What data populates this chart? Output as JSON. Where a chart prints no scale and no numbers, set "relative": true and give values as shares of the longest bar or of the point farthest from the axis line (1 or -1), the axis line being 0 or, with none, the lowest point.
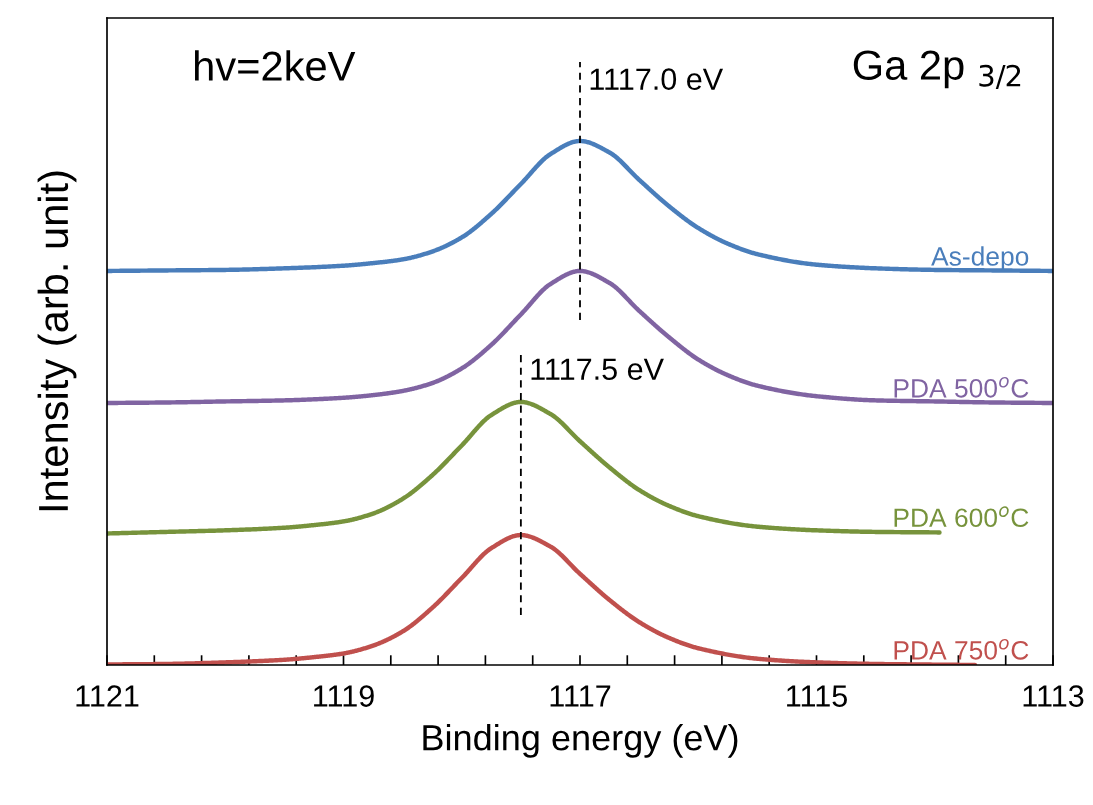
{
  "chart_data": {
    "type": "line",
    "relative": true,
    "xlabel": "Binding energy (eV)",
    "ylabel": "Intensity (arb. unit)",
    "annotations": [
      "hv=2keV",
      "Ga 2p $_{3/2}$"
    ],
    "xlim": [
      1121,
      1113
    ],
    "xticks": [
      1121,
      {
        "value": 1120.6,
        "label": null
      },
      {
        "value": 1120.2,
        "label": null
      },
      {
        "value": 1119.8,
        "label": null
      },
      {
        "value": 1119.4,
        "label": null
      },
      1119,
      {
        "value": 1118.6,
        "label": null
      },
      {
        "value": 1118.2,
        "label": null
      },
      {
        "value": 1117.8,
        "label": null
      },
      {
        "value": 1117.4,
        "label": null
      },
      1117,
      {
        "value": 1116.6,
        "label": null
      },
      {
        "value": 1116.2,
        "label": null
      },
      {
        "value": 1115.8,
        "label": null
      },
      {
        "value": 1115.4,
        "label": null
      },
      1115,
      {
        "value": 1114.6,
        "label": null
      },
      {
        "value": 1114.2,
        "label": null
      },
      {
        "value": 1113.8,
        "label": null
      },
      {
        "value": 1113.4,
        "label": null
      },
      1113
    ],
    "tick_labels": "x",
    "grid": false,
    "legend": false,
    "marker": "none",
    "line_style": "solid",
    "ref_lines": [
      {
        "axis": "x",
        "value": 1117.0,
        "label": "1117.0 eV",
        "color": "#000000",
        "line_style": "dashed"
      },
      {
        "axis": "x",
        "value": 1117.5,
        "label": "1117.5 eV",
        "color": "#000000",
        "line_style": "dashed"
      }
    ],
    "series": [
      {
        "name": "As-depo",
        "color": "#4a7ebb",
        "x": [
          1121,
          1120.5,
          1120,
          1119.5,
          1119,
          1118.75,
          1118.5,
          1118.25,
          1118,
          1117.75,
          1117.5,
          1117.25,
          1117,
          1116.75,
          1116.5,
          1116.25,
          1116,
          1115.75,
          1115.5,
          1115,
          1114.5,
          1114,
          1113.5,
          1113
        ],
        "values": [
          0.752,
          0.753,
          0.754,
          0.757,
          0.762,
          0.767,
          0.774,
          0.789,
          0.816,
          0.861,
          0.918,
          0.975,
          1.0,
          0.978,
          0.926,
          0.876,
          0.834,
          0.804,
          0.784,
          0.764,
          0.757,
          0.754,
          0.753,
          0.752
        ]
      },
      {
        "name": "PDA 500$^{o}$C",
        "color": "#8064a2",
        "x": [
          1121,
          1120.5,
          1120,
          1119.5,
          1119,
          1118.75,
          1118.5,
          1118.25,
          1118,
          1117.75,
          1117.5,
          1117.25,
          1117,
          1116.75,
          1116.5,
          1116.25,
          1116,
          1115.75,
          1115.5,
          1115,
          1114.5,
          1114,
          1113.5,
          1113
        ],
        "values": [
          0.5,
          0.501,
          0.503,
          0.505,
          0.51,
          0.515,
          0.523,
          0.538,
          0.566,
          0.611,
          0.669,
          0.727,
          0.752,
          0.729,
          0.676,
          0.626,
          0.583,
          0.553,
          0.533,
          0.513,
          0.505,
          0.503,
          0.501,
          0.5
        ]
      },
      {
        "name": "PDA 600$^{o}$C",
        "color": "#77933c",
        "x": [
          1121,
          1120.5,
          1120,
          1119.5,
          1119.25,
          1119,
          1118.75,
          1118.5,
          1118.25,
          1118,
          1117.75,
          1117.5,
          1117.25,
          1117,
          1116.75,
          1116.5,
          1116.25,
          1116,
          1115.5,
          1115,
          1114.5,
          1113.96
        ],
        "values": [
          0.251,
          0.254,
          0.257,
          0.262,
          0.267,
          0.274,
          0.289,
          0.317,
          0.362,
          0.419,
          0.477,
          0.502,
          0.479,
          0.427,
          0.377,
          0.334,
          0.304,
          0.284,
          0.264,
          0.257,
          0.254,
          0.253
        ]
      },
      {
        "name": "PDA 750$^{o}$C",
        "color": "#c0504d",
        "x": [
          1121,
          1120.5,
          1120,
          1119.5,
          1119.25,
          1119,
          1118.75,
          1118.5,
          1118.25,
          1118,
          1117.75,
          1117.5,
          1117.25,
          1117,
          1116.75,
          1116.5,
          1116.25,
          1116,
          1115.5,
          1115,
          1114.5,
          1113.66
        ],
        "values": [
          0.001,
          0.002,
          0.005,
          0.01,
          0.015,
          0.022,
          0.037,
          0.064,
          0.109,
          0.166,
          0.223,
          0.248,
          0.226,
          0.174,
          0.124,
          0.082,
          0.052,
          0.032,
          0.012,
          0.005,
          0.002,
          0.0
        ]
      }
    ]
  }
}
